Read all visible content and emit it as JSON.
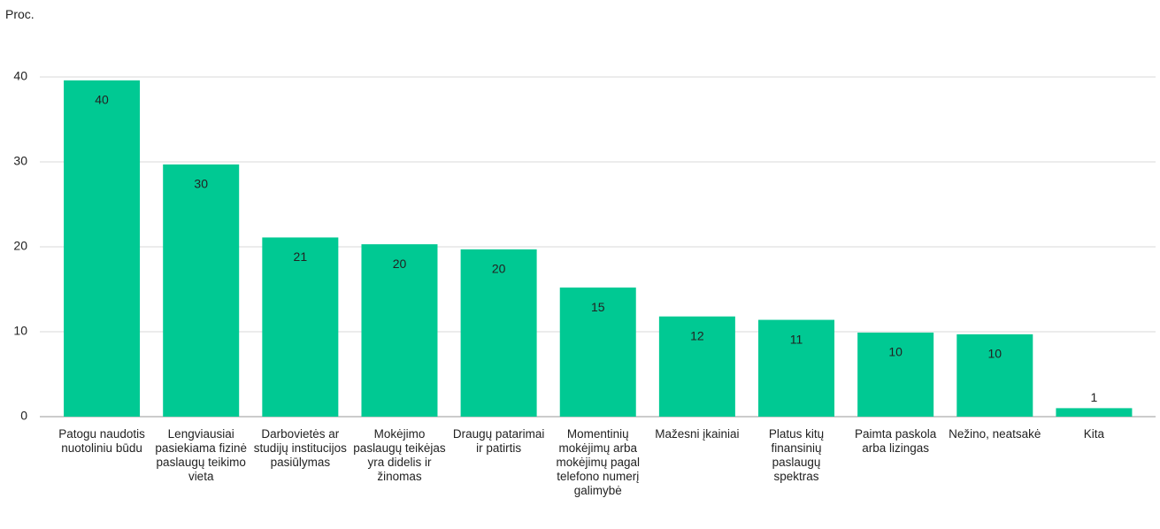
{
  "chart_data": {
    "type": "bar",
    "y_axis_label": "Proc.",
    "categories": [
      "Patogu naudotis nuotoliniu būdu",
      "Lengviausiai pasiekiama fizinė paslaugų teikimo vieta",
      "Darbovietės ar studijų institucijos pasiūlymas",
      "Mokėjimo paslaugų teikėjas yra didelis ir žinomas",
      "Draugų patarimai ir patirtis",
      "Momentinių mokėjimų arba mokėjimų pagal telefono numerį galimybė",
      "Mažesni įkainiai",
      "Platus kitų finansinių paslaugų spektras",
      "Paimta paskola arba lizingas",
      "Nežino, neatsakė",
      "Kita"
    ],
    "values": [
      39.6,
      29.7,
      21.1,
      20.3,
      19.7,
      15.2,
      11.8,
      11.4,
      9.9,
      9.7,
      1.0
    ],
    "value_labels": [
      "40",
      "30",
      "21",
      "20",
      "20",
      "15",
      "12",
      "11",
      "10",
      "10",
      "1"
    ],
    "color": "#00c993",
    "ylim": [
      0,
      40
    ],
    "yticks": [
      0,
      10,
      20,
      30,
      40
    ],
    "grid": true
  }
}
